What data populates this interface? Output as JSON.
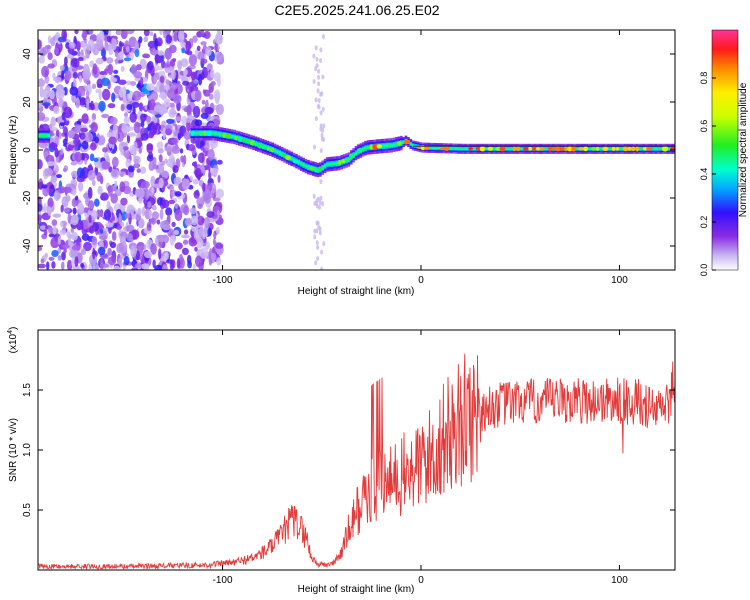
{
  "title": "C2E5.2025.241.06.25.E02",
  "chart_data": [
    {
      "type": "heatmap",
      "xlabel": "Height of straight line (km)",
      "ylabel": "Frequency (Hz)",
      "xlim": [
        -193,
        128
      ],
      "ylim": [
        -50,
        50
      ],
      "xticks": [
        -100,
        0,
        100
      ],
      "yticks": [
        -40,
        -20,
        0,
        20,
        40
      ],
      "xtick_labels": [
        "-100",
        "0",
        "100"
      ],
      "ytick_labels": [
        "-40",
        "-20",
        "0",
        "20",
        "40"
      ],
      "colorbar": {
        "label": "Normalized spectral amplitude",
        "range": [
          0,
          1
        ],
        "ticks": [
          0.0,
          0.2,
          0.4,
          0.6,
          0.8
        ],
        "tick_labels": [
          "0.0",
          "0.2",
          "0.4",
          "0.6",
          "0.8"
        ]
      },
      "ridge": {
        "x": [
          -190,
          -180,
          -115,
          -105,
          -95,
          -85,
          -75,
          -65,
          -58,
          -52,
          -48,
          -42,
          -37,
          -33,
          -28,
          -22,
          -15,
          -10,
          -8,
          -5,
          0,
          20,
          60,
          100,
          128
        ],
        "y": [
          6,
          6,
          7,
          7,
          5.5,
          3,
          0,
          -4,
          -7,
          -8.5,
          -6,
          -5.5,
          -4,
          -1,
          1,
          1.5,
          2,
          3,
          4,
          2,
          1,
          0.5,
          0.5,
          0.5,
          0.5
        ]
      }
    },
    {
      "type": "line",
      "xlabel": "Height of straight line (km)",
      "ylabel": "SNR (10 * v/v)",
      "ylabel_scale": "(x10",
      "ylabel_exp": "4",
      "xlim": [
        -193,
        128
      ],
      "ylim": [
        0,
        2
      ],
      "xticks": [
        -100,
        0,
        100
      ],
      "yticks": [
        0.5,
        1.0,
        1.5
      ],
      "xtick_labels": [
        "-100",
        "0",
        "100"
      ],
      "ytick_labels": [
        "0.5",
        "1.0",
        "1.5"
      ],
      "series": [
        {
          "name": "SNR",
          "color": "#e33a3a",
          "x": [
            -193,
            -150,
            -110,
            -95,
            -85,
            -78,
            -72,
            -68,
            -65,
            -62,
            -58,
            -55,
            -52,
            -48,
            -44,
            -40,
            -36,
            -32,
            -28,
            -24,
            -20,
            -15,
            -10,
            -5,
            0,
            5,
            10,
            15,
            20,
            25,
            30,
            40,
            50,
            60,
            70,
            80,
            90,
            100,
            110,
            118,
            124,
            128
          ],
          "y": [
            0.03,
            0.03,
            0.04,
            0.06,
            0.1,
            0.16,
            0.25,
            0.35,
            0.42,
            0.38,
            0.28,
            0.1,
            0.05,
            0.04,
            0.06,
            0.15,
            0.35,
            0.5,
            0.6,
            0.65,
            0.7,
            0.72,
            0.78,
            0.82,
            0.88,
            0.95,
            1.05,
            1.15,
            1.22,
            1.28,
            1.33,
            1.38,
            1.4,
            1.4,
            1.41,
            1.41,
            1.41,
            1.41,
            1.4,
            1.32,
            1.38,
            1.4
          ]
        }
      ]
    }
  ]
}
